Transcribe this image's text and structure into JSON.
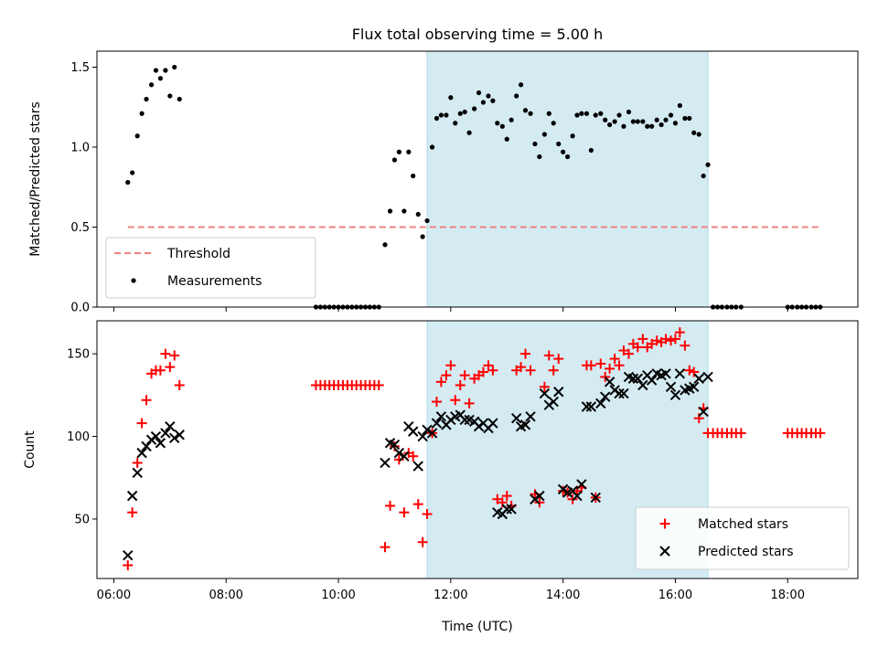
{
  "chart_data": [
    {
      "type": "scatter",
      "title": "Flux total observing time = 5.00 h",
      "xlabel": "",
      "ylabel": "Matched/Predicted stars",
      "xlim_hours": [
        5.7,
        19.25
      ],
      "ylim": [
        0,
        1.6
      ],
      "yticks": [
        {
          "value": 0.0,
          "label": "0.0"
        },
        {
          "value": 0.5,
          "label": "0.5"
        },
        {
          "value": 1.0,
          "label": "1.0"
        },
        {
          "value": 1.5,
          "label": "1.5"
        }
      ],
      "highlight_span": {
        "x0": 11.58,
        "x1": 16.58,
        "color": "#d4ebf2"
      },
      "threshold": {
        "name": "Threshold",
        "value": 0.5,
        "x0": 6.25,
        "x1": 18.6,
        "color": "#f08080"
      },
      "legend": {
        "position": "lower-left",
        "entries": [
          "Threshold",
          "Measurements"
        ]
      },
      "series": [
        {
          "name": "Measurements",
          "color": "#000000",
          "marker": "dot",
          "x": [
            6.25,
            6.33,
            6.42,
            6.5,
            6.58,
            6.67,
            6.75,
            6.83,
            6.92,
            7.0,
            7.08,
            7.17,
            9.6,
            9.68,
            9.76,
            9.84,
            9.92,
            10.0,
            10.08,
            10.16,
            10.24,
            10.32,
            10.4,
            10.48,
            10.56,
            10.64,
            10.72,
            10.83,
            10.92,
            11.0,
            11.08,
            11.17,
            11.25,
            11.33,
            11.42,
            11.5,
            11.58,
            11.67,
            11.75,
            11.83,
            11.92,
            12.0,
            12.08,
            12.17,
            12.25,
            12.33,
            12.42,
            12.5,
            12.58,
            12.67,
            12.75,
            12.83,
            12.92,
            13.0,
            13.08,
            13.17,
            13.25,
            13.33,
            13.42,
            13.5,
            13.58,
            13.67,
            13.75,
            13.83,
            13.92,
            14.0,
            14.08,
            14.17,
            14.25,
            14.33,
            14.42,
            14.5,
            14.58,
            14.67,
            14.75,
            14.83,
            14.92,
            15.0,
            15.08,
            15.17,
            15.25,
            15.33,
            15.42,
            15.5,
            15.58,
            15.67,
            15.75,
            15.83,
            15.92,
            16.0,
            16.08,
            16.17,
            16.25,
            16.33,
            16.42,
            16.5,
            16.58,
            16.67,
            16.75,
            16.83,
            16.92,
            17.0,
            17.08,
            17.17,
            18.0,
            18.08,
            18.17,
            18.25,
            18.33,
            18.42,
            18.5,
            18.58
          ],
          "y": [
            0.78,
            0.84,
            1.07,
            1.21,
            1.3,
            1.39,
            1.48,
            1.43,
            1.48,
            1.32,
            1.5,
            1.3,
            0,
            0,
            0,
            0,
            0,
            0,
            0,
            0,
            0,
            0,
            0,
            0,
            0,
            0,
            0,
            0.39,
            0.6,
            0.92,
            0.97,
            0.6,
            0.97,
            0.82,
            0.58,
            0.44,
            0.54,
            1.0,
            1.18,
            1.2,
            1.2,
            1.31,
            1.15,
            1.21,
            1.22,
            1.09,
            1.24,
            1.34,
            1.28,
            1.32,
            1.29,
            1.15,
            1.13,
            1.05,
            1.17,
            1.32,
            1.39,
            1.23,
            1.21,
            1.02,
            0.94,
            1.08,
            1.21,
            1.15,
            1.02,
            0.97,
            0.94,
            1.07,
            1.2,
            1.21,
            1.21,
            0.98,
            1.2,
            1.21,
            1.17,
            1.14,
            1.16,
            1.2,
            1.13,
            1.22,
            1.16,
            1.16,
            1.16,
            1.13,
            1.13,
            1.17,
            1.14,
            1.17,
            1.2,
            1.15,
            1.26,
            1.18,
            1.18,
            1.09,
            1.08,
            0.82,
            0.89,
            0,
            0,
            0,
            0,
            0,
            0,
            0,
            0,
            0,
            0,
            0,
            0,
            0,
            0,
            0
          ]
        }
      ]
    },
    {
      "type": "scatter",
      "title": "",
      "xlabel": "Time (UTC)",
      "ylabel": "Count",
      "xlim_hours": [
        5.7,
        19.25
      ],
      "ylim": [
        14,
        170
      ],
      "yticks": [
        {
          "value": 50,
          "label": "50"
        },
        {
          "value": 100,
          "label": "100"
        },
        {
          "value": 150,
          "label": "150"
        }
      ],
      "xticks": [
        {
          "value": 6,
          "label": "06:00"
        },
        {
          "value": 8,
          "label": "08:00"
        },
        {
          "value": 10,
          "label": "10:00"
        },
        {
          "value": 12,
          "label": "12:00"
        },
        {
          "value": 14,
          "label": "14:00"
        },
        {
          "value": 16,
          "label": "16:00"
        },
        {
          "value": 18,
          "label": "18:00"
        }
      ],
      "highlight_span": {
        "x0": 11.58,
        "x1": 16.58,
        "color": "#d4ebf2"
      },
      "legend": {
        "position": "lower-right",
        "entries": [
          "Matched stars",
          "Predicted stars"
        ]
      },
      "series": [
        {
          "name": "Matched stars",
          "color": "#ff0000",
          "marker": "plus",
          "x": [
            6.25,
            6.33,
            6.42,
            6.5,
            6.58,
            6.67,
            6.75,
            6.83,
            6.92,
            7.0,
            7.08,
            7.17,
            9.6,
            9.68,
            9.76,
            9.84,
            9.92,
            10.0,
            10.08,
            10.16,
            10.24,
            10.32,
            10.4,
            10.48,
            10.56,
            10.64,
            10.72,
            10.83,
            10.92,
            11.0,
            11.08,
            11.17,
            11.25,
            11.33,
            11.42,
            11.5,
            11.58,
            11.67,
            11.75,
            11.83,
            11.92,
            12.0,
            12.08,
            12.17,
            12.25,
            12.33,
            12.42,
            12.5,
            12.58,
            12.67,
            12.75,
            12.83,
            12.92,
            13.0,
            13.08,
            13.17,
            13.25,
            13.33,
            13.42,
            13.5,
            13.58,
            13.67,
            13.75,
            13.83,
            13.92,
            14.0,
            14.08,
            14.17,
            14.25,
            14.33,
            14.42,
            14.5,
            14.58,
            14.67,
            14.75,
            14.83,
            14.92,
            15.0,
            15.08,
            15.17,
            15.25,
            15.33,
            15.42,
            15.5,
            15.58,
            15.67,
            15.75,
            15.83,
            15.92,
            16.0,
            16.08,
            16.17,
            16.25,
            16.33,
            16.42,
            16.5,
            16.58,
            16.67,
            16.75,
            16.83,
            16.92,
            17.0,
            17.08,
            17.17,
            18.0,
            18.08,
            18.17,
            18.25,
            18.33,
            18.42,
            18.5,
            18.58
          ],
          "y": [
            22,
            54,
            84,
            108,
            122,
            138,
            140,
            140,
            150,
            142,
            149,
            131,
            131,
            131,
            131,
            131,
            131,
            131,
            131,
            131,
            131,
            131,
            131,
            131,
            131,
            131,
            131,
            33,
            58,
            94,
            86,
            54,
            90,
            88,
            59,
            36,
            53,
            102,
            121,
            133,
            137,
            143,
            122,
            131,
            137,
            120,
            135,
            137,
            139,
            143,
            140,
            62,
            60,
            64,
            58,
            140,
            142,
            150,
            140,
            65,
            60,
            130,
            149,
            140,
            147,
            67,
            66,
            62,
            67,
            69,
            143,
            143,
            63,
            144,
            136,
            141,
            147,
            143,
            152,
            150,
            156,
            154,
            159,
            154,
            156,
            158,
            157,
            159,
            158,
            159,
            163,
            155,
            140,
            139,
            111,
            117,
            102,
            102,
            102,
            102,
            102,
            102,
            102,
            102,
            102,
            102,
            102,
            102,
            102,
            102,
            102,
            102
          ]
        },
        {
          "name": "Predicted stars",
          "color": "#000000",
          "marker": "x",
          "x": [
            6.25,
            6.33,
            6.42,
            6.5,
            6.58,
            6.67,
            6.75,
            6.83,
            6.92,
            7.0,
            7.08,
            7.17,
            10.83,
            10.92,
            11.0,
            11.08,
            11.17,
            11.25,
            11.33,
            11.42,
            11.5,
            11.58,
            11.67,
            11.75,
            11.83,
            11.92,
            12.0,
            12.08,
            12.17,
            12.25,
            12.33,
            12.42,
            12.5,
            12.58,
            12.67,
            12.75,
            12.83,
            12.92,
            13.0,
            13.08,
            13.17,
            13.25,
            13.33,
            13.42,
            13.5,
            13.58,
            13.67,
            13.75,
            13.83,
            13.92,
            14.0,
            14.08,
            14.17,
            14.25,
            14.33,
            14.42,
            14.5,
            14.58,
            14.67,
            14.75,
            14.83,
            14.92,
            15.0,
            15.08,
            15.17,
            15.25,
            15.33,
            15.42,
            15.5,
            15.58,
            15.67,
            15.75,
            15.83,
            15.92,
            16.0,
            16.08,
            16.17,
            16.25,
            16.33,
            16.42,
            16.5,
            16.58
          ],
          "y": [
            28,
            64,
            78,
            90,
            94,
            98,
            100,
            96,
            102,
            106,
            99,
            101,
            84,
            96,
            95,
            90,
            88,
            106,
            103,
            82,
            100,
            104,
            102,
            108,
            112,
            107,
            110,
            112,
            113,
            110,
            110,
            109,
            106,
            108,
            105,
            108,
            54,
            53,
            56,
            56,
            111,
            106,
            107,
            112,
            62,
            64,
            126,
            119,
            121,
            127,
            68,
            66,
            67,
            64,
            71,
            118,
            118,
            63,
            120,
            124,
            133,
            128,
            126,
            126,
            136,
            135,
            135,
            131,
            137,
            134,
            138,
            137,
            138,
            130,
            125,
            138,
            128,
            129,
            130,
            135,
            115,
            136
          ]
        }
      ]
    }
  ]
}
